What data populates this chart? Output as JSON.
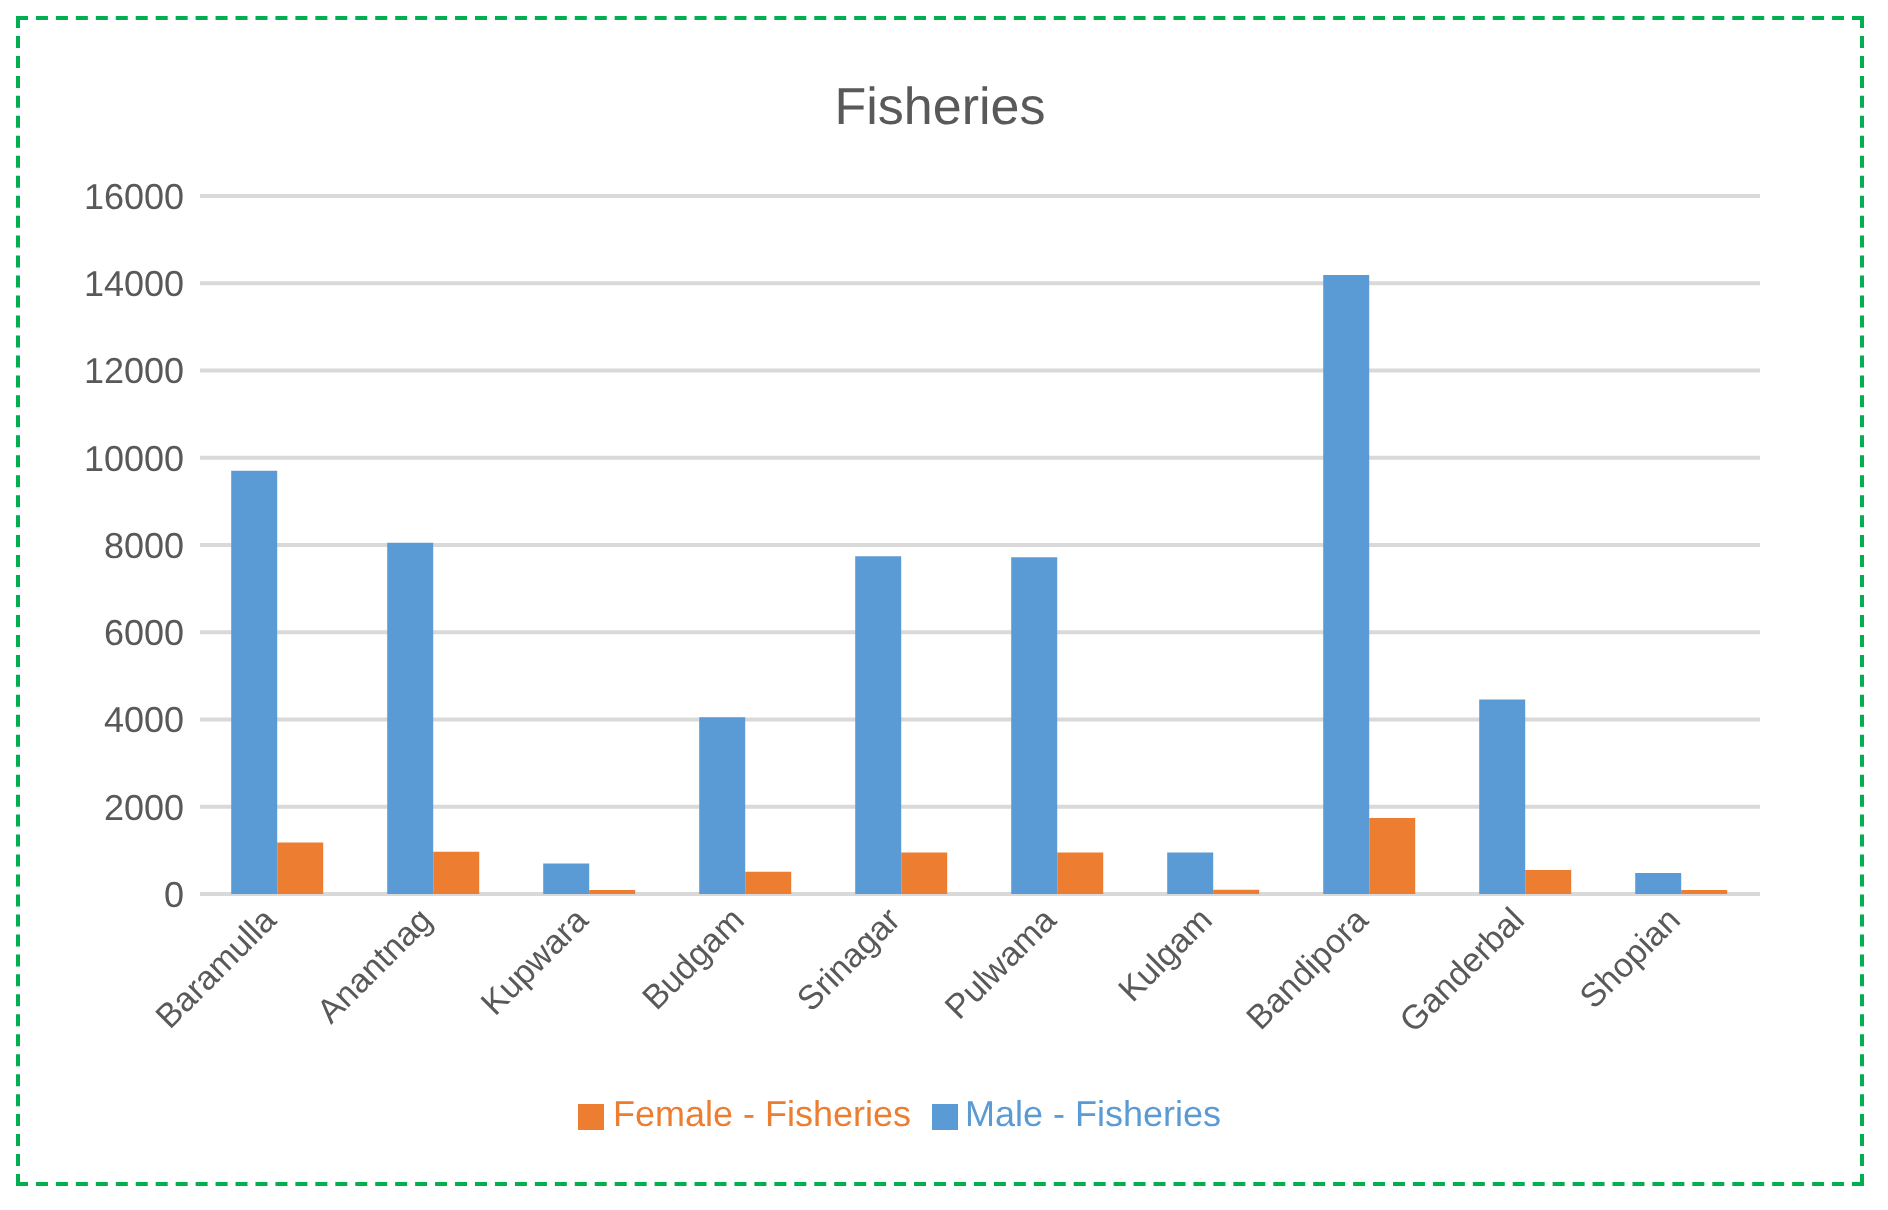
{
  "chart_data": {
    "type": "bar",
    "title": "Fisheries",
    "categories": [
      "Baramulla",
      "Anantnag",
      "Kupwara",
      "Budgam",
      "Srinagar",
      "Pulwama",
      "Kulgam",
      "Bandipora",
      "Ganderbal",
      "Shopian"
    ],
    "series": [
      {
        "name": "Male - Fisheries",
        "color": "#5b9bd5",
        "values": [
          9700,
          8050,
          700,
          4050,
          7740,
          7720,
          950,
          14190,
          4460,
          480
        ]
      },
      {
        "name": "Female - Fisheries",
        "color": "#ed7d31",
        "values": [
          1180,
          970,
          90,
          510,
          950,
          950,
          100,
          1740,
          550,
          90
        ]
      }
    ],
    "ylim": [
      0,
      16000
    ],
    "yticks": [
      0,
      2000,
      4000,
      6000,
      8000,
      10000,
      12000,
      14000,
      16000
    ],
    "grid": "y",
    "legend": "bottom"
  }
}
